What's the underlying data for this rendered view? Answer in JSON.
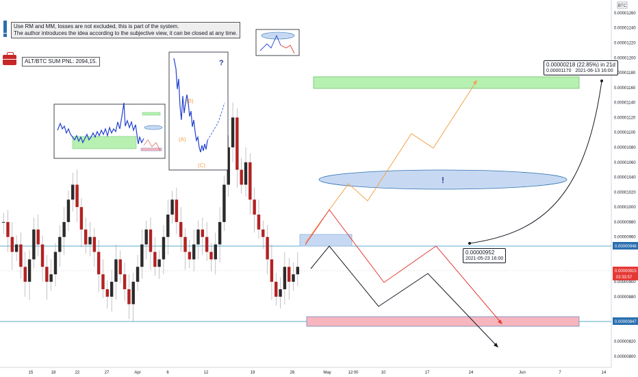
{
  "notes": {
    "line1": "Use RM and MM, losses are not excluded, this is part of the system.",
    "line2": "The author introduces the idea according to the subjective view, it can be closed at any time.",
    "pnl": "ALT/BTC SUM PNL: 2094,15."
  },
  "symbol_label": "BTC",
  "callout_top": {
    "main": "0.00000218 (22.85%) in 21d",
    "sub1": "0.00001170",
    "sub2": "2021-06-13  16:00"
  },
  "callout_mid": {
    "main": "0.00000952",
    "sub": "2021-05-23  16:00"
  },
  "wave_labels": {
    "b": "(B)",
    "a": "(A)",
    "c": "(C)",
    "question": "?",
    "exclaim": "!"
  },
  "colors": {
    "bull": "#26a69a",
    "bear": "#9b2226",
    "candle_red": "#b22222",
    "candle_dark": "#2b2b2b",
    "green_zone": "#b7f0b1",
    "red_zone": "#f7b6bd",
    "blue_zone": "#c7d9f2",
    "hline": "#5aa9c9",
    "orange": "#f5a14a",
    "red_path": "#e53935",
    "black_path": "#131722",
    "badge_red": "#e53935",
    "badge_blue": "#2a6fb0"
  },
  "chart_data": {
    "type": "candlestick",
    "y_axis": {
      "min": 8e-06,
      "max": 1.27e-05,
      "ticks": [
        "0.00001260",
        "0.00001240",
        "0.00001220",
        "0.00001200",
        "0.00001180",
        "0.00001160",
        "0.00001140",
        "0.00001120",
        "0.00001100",
        "0.00001080",
        "0.00001060",
        "0.00001040",
        "0.00001020",
        "0.00001000",
        "0.00000980",
        "0.00000960",
        "0.00000948",
        "0.00000915",
        "0.00000900",
        "0.00000880",
        "0.00000847",
        "0.00000820",
        "0.00000800"
      ]
    },
    "x_ticks": [
      "15",
      "18",
      "22",
      "27",
      "Apr",
      "6",
      "12",
      "19",
      "26",
      "May",
      "12:00",
      "10",
      "17",
      "24",
      "Jun",
      "7",
      "14"
    ],
    "price_badge": {
      "value": "0.00000915",
      "timer": "02:33:57"
    },
    "line_badges": [
      "0.00000948",
      "0.00000847"
    ],
    "horizontal_lines": [
      9.48e-06,
      8.47e-06
    ],
    "candles_close": [
      9.8e-06,
      9.6e-06,
      9.4e-06,
      9.5e-06,
      9.2e-06,
      9e-06,
      9.3e-06,
      9.7e-06,
      9.5e-06,
      9.2e-06,
      9e-06,
      9.1e-06,
      9.4e-06,
      9.6e-06,
      9.8e-06,
      1.01e-05,
      1.03e-05,
      1e-05,
      9.7e-06,
      9.5e-06,
      9.6e-06,
      9.4e-06,
      9.1e-06,
      8.9e-06,
      8.8e-06,
      9e-06,
      9.3e-06,
      9.1e-06,
      8.9e-06,
      8.7e-06,
      9e-06,
      9.2e-06,
      9.5e-06,
      9.7e-06,
      9.4e-06,
      9.2e-06,
      9.3e-06,
      9.6e-06,
      9.9e-06,
      1.01e-05,
      9.8e-06,
      9.6e-06,
      9.4e-06,
      9.3e-06,
      9.5e-06,
      9.7e-06,
      9.6e-06,
      9.4e-06,
      9.3e-06,
      9.5e-06,
      9.8e-06,
      1.03e-05,
      1.08e-05,
      1.12e-05,
      1.05e-05,
      1.03e-05,
      1.06e-05,
      1.01e-05,
      9.9e-06,
      9.7e-06,
      9.6e-06,
      9.3e-06,
      9e-06,
      8.8e-06,
      8.9e-06,
      9.2e-06,
      9e-06,
      9.1e-06,
      9.2e-06
    ],
    "target_zones": [
      {
        "name": "green",
        "from": 1.17e-05,
        "to": 1.162e-05
      },
      {
        "name": "red",
        "from": 8.51e-06,
        "to": 8.45e-06
      }
    ]
  }
}
